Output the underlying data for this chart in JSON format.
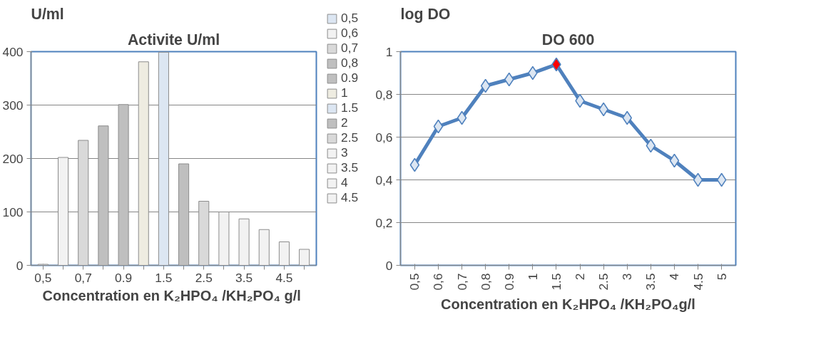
{
  "chart_data": [
    {
      "type": "bar",
      "title": "Activite U/ml",
      "ylabel": "U/ml",
      "xlabel": "Concentration en  K₂HPO₄ /KH₂PO₄ g/l",
      "categories": [
        "0,5",
        null,
        "0,7",
        null,
        "0.9",
        null,
        "1.5",
        null,
        "2.5",
        null,
        "3.5",
        null,
        "4.5",
        null
      ],
      "series": [
        {
          "name": "0,5",
          "color": "#dce6f2",
          "values": [
            2,
            null,
            null,
            null,
            null,
            null,
            null,
            null,
            null,
            null,
            null,
            null,
            null,
            null
          ]
        },
        {
          "name": "0,6",
          "color": "#f2f2f2",
          "values": [
            null,
            202,
            null,
            null,
            null,
            null,
            null,
            null,
            null,
            null,
            null,
            null,
            null,
            null
          ]
        },
        {
          "name": "0,7",
          "color": "#d9d9d9",
          "values": [
            null,
            null,
            234,
            null,
            null,
            null,
            null,
            null,
            null,
            null,
            null,
            null,
            null,
            null
          ]
        },
        {
          "name": "0,8",
          "color": "#bfbfbf",
          "values": [
            null,
            null,
            null,
            261,
            null,
            null,
            null,
            null,
            null,
            null,
            null,
            null,
            null,
            null
          ]
        },
        {
          "name": "0.9",
          "color": "#bfbfbf",
          "values": [
            null,
            null,
            null,
            null,
            301,
            null,
            null,
            null,
            null,
            null,
            null,
            null,
            null,
            null
          ]
        },
        {
          "name": "1",
          "color": "#eeece1",
          "values": [
            null,
            null,
            null,
            null,
            null,
            381,
            null,
            null,
            null,
            null,
            null,
            null,
            null,
            null
          ]
        },
        {
          "name": "1.5",
          "color": "#dce6f2",
          "values": [
            null,
            null,
            null,
            null,
            null,
            null,
            399,
            null,
            null,
            null,
            null,
            null,
            null,
            null
          ]
        },
        {
          "name": "2",
          "color": "#bfbfbf",
          "values": [
            null,
            null,
            null,
            null,
            null,
            null,
            null,
            190,
            null,
            null,
            null,
            null,
            null,
            null
          ]
        },
        {
          "name": "2.5",
          "color": "#d9d9d9",
          "values": [
            null,
            null,
            null,
            null,
            null,
            null,
            null,
            null,
            120,
            null,
            null,
            null,
            null,
            null
          ]
        },
        {
          "name": "3",
          "color": "#f2f2f2",
          "values": [
            null,
            null,
            null,
            null,
            null,
            null,
            null,
            null,
            null,
            100,
            null,
            null,
            null,
            null
          ]
        },
        {
          "name": "3.5",
          "color": "#f2f2f2",
          "values": [
            null,
            null,
            null,
            null,
            null,
            null,
            null,
            null,
            null,
            null,
            87,
            null,
            null,
            null
          ]
        },
        {
          "name": "4",
          "color": "#f2f2f2",
          "values": [
            null,
            null,
            null,
            null,
            null,
            null,
            null,
            null,
            null,
            null,
            null,
            67,
            null,
            null
          ]
        },
        {
          "name": "4.5",
          "color": "#f2f2f2",
          "values": [
            null,
            null,
            null,
            null,
            null,
            null,
            null,
            null,
            null,
            null,
            null,
            null,
            44,
            null
          ]
        },
        {
          "color": "#f2f2f2",
          "values": [
            null,
            null,
            null,
            null,
            null,
            null,
            null,
            null,
            null,
            null,
            null,
            null,
            null,
            30
          ]
        }
      ],
      "ylim": [
        0,
        400
      ],
      "yticks": [
        0,
        100,
        200,
        300,
        400
      ],
      "grid": "y",
      "legend": "right"
    },
    {
      "type": "line",
      "title": "DO 600",
      "ylabel": "log DO",
      "xlabel": "Concentration en K₂HPO₄ /KH₂PO₄g/l",
      "categories": [
        "0,5",
        "0,6",
        "0,7",
        "0,8",
        "0.9",
        "1",
        "1.5",
        "2",
        "2.5",
        "3",
        "3.5",
        "4",
        "4.5",
        "5"
      ],
      "series": [
        {
          "color": "#4f81bd",
          "values": [
            0.47,
            0.65,
            0.69,
            0.84,
            0.87,
            0.9,
            0.94,
            0.77,
            0.73,
            0.69,
            0.56,
            0.49,
            0.4,
            0.4
          ],
          "colors": [
            "#dce6f2",
            "#dce6f2",
            "#dce6f2",
            "#dce6f2",
            "#dce6f2",
            "#dce6f2",
            "#ff0000",
            "#dce6f2",
            "#dce6f2",
            "#dce6f2",
            "#dce6f2",
            "#dce6f2",
            "#dce6f2",
            "#dce6f2"
          ]
        }
      ],
      "ylim": [
        0,
        1
      ],
      "yticks": [
        0,
        {
          "value": 0.2,
          "label": "0,2"
        },
        {
          "value": 0.4,
          "label": "0,4"
        },
        {
          "value": 0.6,
          "label": "0,6"
        },
        {
          "value": 0.8,
          "label": "0,8"
        },
        1
      ],
      "grid": "y",
      "marker": "diamond",
      "line_style": "solid"
    }
  ]
}
